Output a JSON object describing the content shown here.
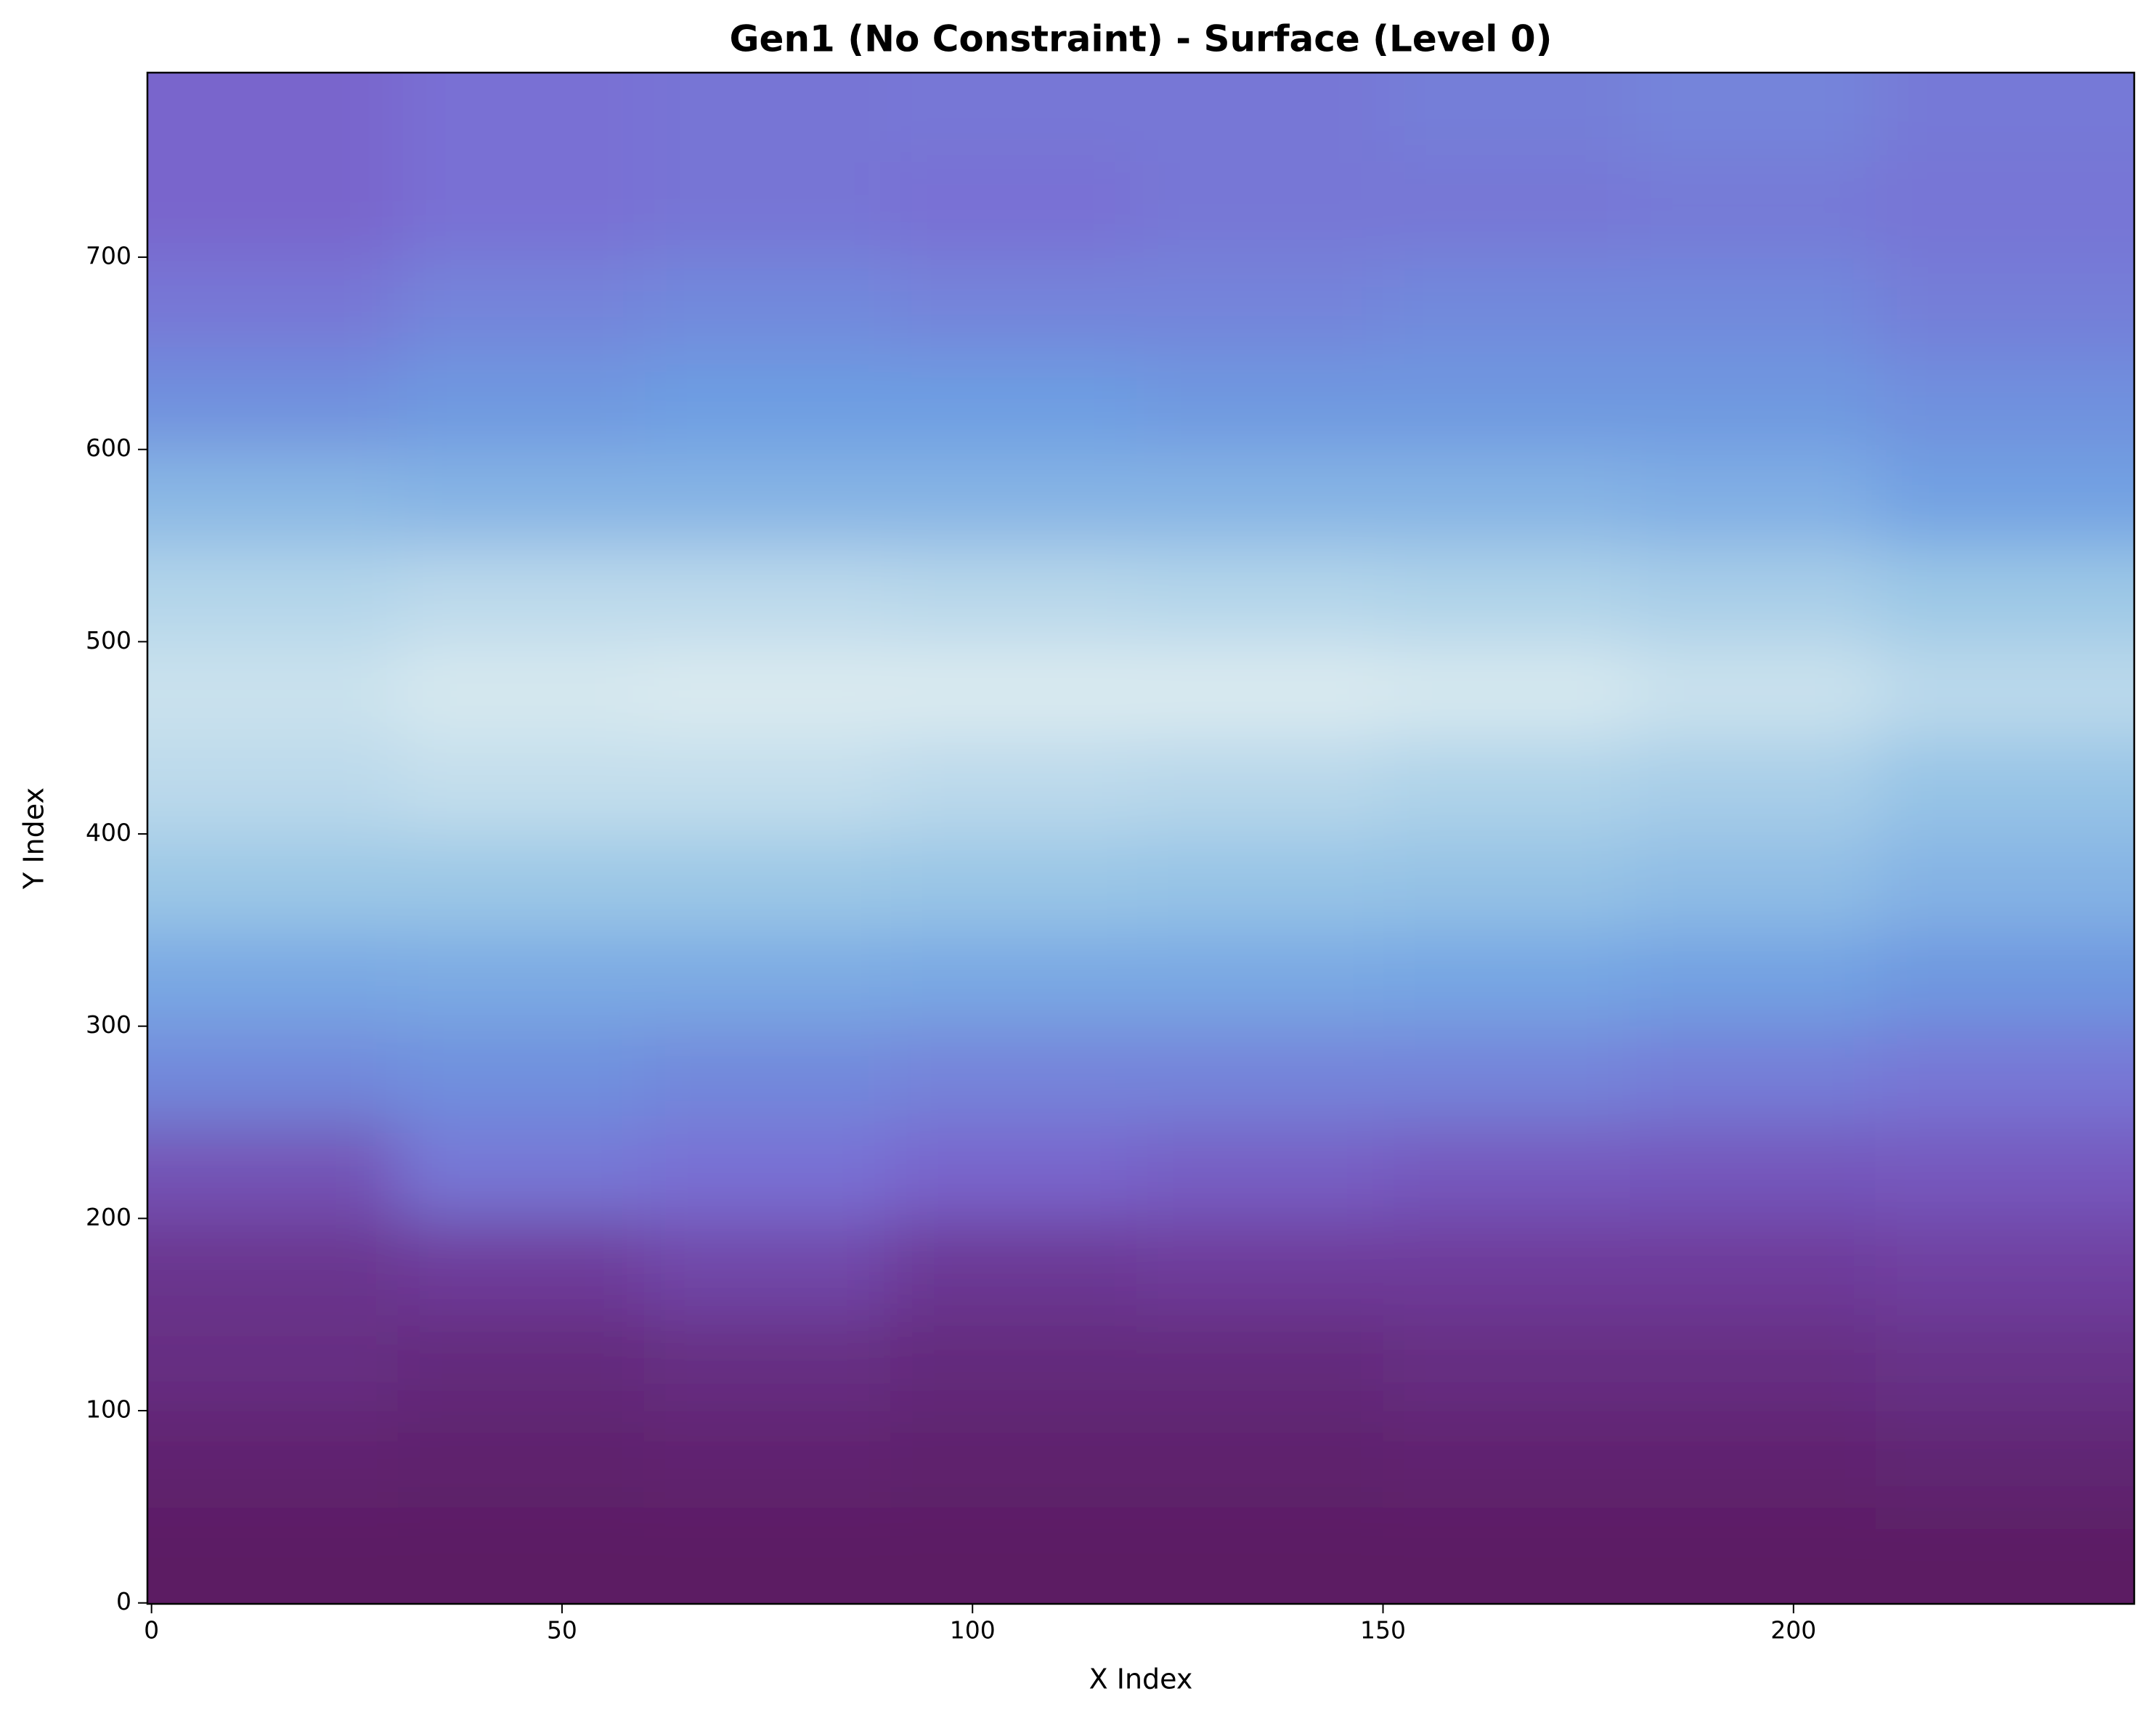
{
  "chart_data": {
    "type": "heatmap",
    "title": "Gen1 (No Constraint) - Surface (Level 0)",
    "x_label": "X Index",
    "y_label": "Y Index",
    "xlim": [
      -0.5,
      241.5
    ],
    "ylim": [
      -0.5,
      796
    ],
    "xticks": [
      0,
      50,
      100,
      150,
      200
    ],
    "yticks": [
      0,
      100,
      200,
      300,
      400,
      500,
      600,
      700
    ],
    "colormap": [
      "#5a1a5e",
      "#6e3a9a",
      "#7a6ad2",
      "#6d9de2",
      "#9cc8e6",
      "#e9f3f2"
    ],
    "x_edges": [
      0,
      30,
      60,
      90,
      120,
      150,
      180,
      210,
      241
    ],
    "y_edges": [
      0,
      50,
      100,
      150,
      200,
      250,
      300,
      350,
      400,
      450,
      500,
      550,
      600,
      650,
      700,
      750,
      796
    ],
    "values": [
      [
        0.02,
        0.02,
        0.02,
        0.02,
        0.02,
        0.02,
        0.02,
        0.02
      ],
      [
        0.06,
        0.05,
        0.06,
        0.05,
        0.05,
        0.06,
        0.06,
        0.07
      ],
      [
        0.12,
        0.1,
        0.12,
        0.1,
        0.1,
        0.12,
        0.12,
        0.14
      ],
      [
        0.16,
        0.2,
        0.25,
        0.18,
        0.2,
        0.2,
        0.2,
        0.22
      ],
      [
        0.3,
        0.45,
        0.42,
        0.38,
        0.35,
        0.33,
        0.32,
        0.33
      ],
      [
        0.52,
        0.55,
        0.52,
        0.5,
        0.5,
        0.5,
        0.48,
        0.45
      ],
      [
        0.65,
        0.66,
        0.66,
        0.65,
        0.65,
        0.64,
        0.62,
        0.58
      ],
      [
        0.8,
        0.8,
        0.8,
        0.79,
        0.78,
        0.77,
        0.75,
        0.7
      ],
      [
        0.88,
        0.9,
        0.9,
        0.88,
        0.87,
        0.85,
        0.83,
        0.78
      ],
      [
        0.92,
        0.95,
        0.96,
        0.96,
        0.96,
        0.95,
        0.92,
        0.88
      ],
      [
        0.86,
        0.88,
        0.88,
        0.87,
        0.86,
        0.85,
        0.83,
        0.8
      ],
      [
        0.72,
        0.7,
        0.7,
        0.7,
        0.7,
        0.7,
        0.68,
        0.62
      ],
      [
        0.55,
        0.58,
        0.6,
        0.6,
        0.58,
        0.58,
        0.58,
        0.55
      ],
      [
        0.45,
        0.5,
        0.52,
        0.5,
        0.5,
        0.52,
        0.52,
        0.48
      ],
      [
        0.38,
        0.42,
        0.44,
        0.42,
        0.45,
        0.45,
        0.46,
        0.44
      ],
      [
        0.38,
        0.42,
        0.44,
        0.45,
        0.45,
        0.48,
        0.5,
        0.46
      ]
    ]
  }
}
